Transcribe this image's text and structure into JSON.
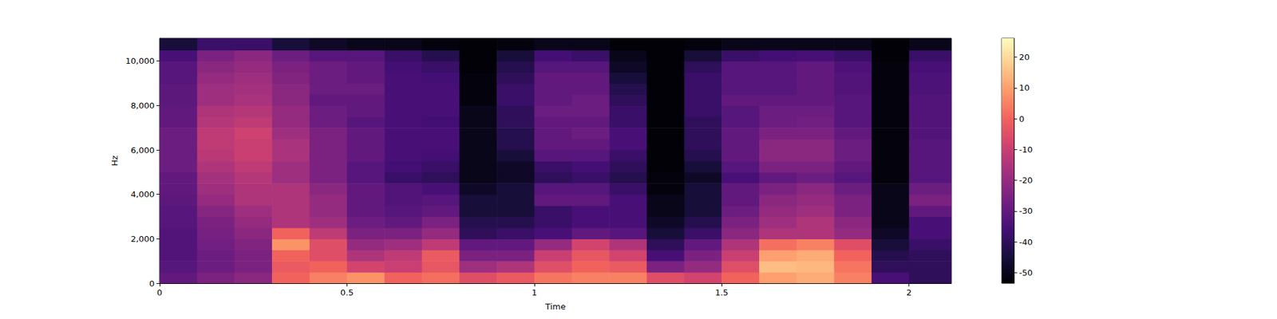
{
  "chart_data": {
    "type": "heatmap",
    "xlabel": "Time",
    "ylabel": "Hz",
    "xlim": [
      0,
      2.113
    ],
    "ylim": [
      0,
      11025
    ],
    "xticks": [
      0,
      0.5,
      1,
      1.5,
      2
    ],
    "yticks": [
      0,
      2000,
      4000,
      6000,
      8000,
      10000
    ],
    "grid": false,
    "x_edges": [
      0,
      0.1,
      0.2,
      0.3,
      0.4,
      0.5,
      0.6,
      0.7,
      0.8,
      0.9,
      1.0,
      1.1,
      1.2,
      1.3,
      1.4,
      1.5,
      1.6,
      1.7,
      1.8,
      1.9,
      2.0,
      2.113
    ],
    "y_edges": [
      0,
      500,
      1000,
      1500,
      2000,
      2500,
      3000,
      3500,
      4000,
      4500,
      5000,
      5500,
      6000,
      6500,
      7000,
      7500,
      8000,
      8500,
      9000,
      9500,
      10000,
      10500,
      11025
    ],
    "cells": [
      [
        -30,
        -25,
        -22,
        0,
        5,
        8,
        0,
        2,
        -5,
        -2,
        3,
        5,
        5,
        -5,
        -8,
        0,
        10,
        12,
        5,
        -35,
        -40
      ],
      [
        -32,
        -28,
        -25,
        -2,
        0,
        -8,
        -10,
        -3,
        -18,
        -15,
        -5,
        0,
        -2,
        -25,
        -20,
        -5,
        15,
        14,
        3,
        -40,
        -40
      ],
      [
        -33,
        -28,
        -25,
        0,
        -5,
        -15,
        -12,
        -2,
        -25,
        -25,
        -10,
        -3,
        -8,
        -35,
        -25,
        -10,
        10,
        12,
        0,
        -42,
        -40
      ],
      [
        -33,
        -27,
        -24,
        8,
        -5,
        -20,
        -18,
        -12,
        -30,
        -30,
        -20,
        -8,
        -15,
        -40,
        -30,
        -15,
        2,
        5,
        -5,
        -45,
        -38
      ],
      [
        -33,
        -26,
        -22,
        0,
        -12,
        -25,
        -25,
        -20,
        -40,
        -38,
        -35,
        -30,
        -32,
        -45,
        -38,
        -22,
        -15,
        -15,
        -20,
        -48,
        -35
      ],
      [
        -32,
        -25,
        -20,
        -15,
        -18,
        -28,
        -30,
        -25,
        -42,
        -42,
        -38,
        -35,
        -35,
        -48,
        -42,
        -25,
        -18,
        -15,
        -22,
        -50,
        -35
      ],
      [
        -32,
        -23,
        -18,
        -15,
        -20,
        -30,
        -32,
        -30,
        -45,
        -45,
        -38,
        -35,
        -35,
        -50,
        -45,
        -28,
        -20,
        -18,
        -25,
        -50,
        -30
      ],
      [
        -31,
        -20,
        -15,
        -15,
        -20,
        -30,
        -33,
        -32,
        -45,
        -45,
        -30,
        -30,
        -35,
        -50,
        -45,
        -30,
        -22,
        -20,
        -25,
        -50,
        -25
      ],
      [
        -30,
        -18,
        -15,
        -15,
        -22,
        -30,
        -33,
        -35,
        -48,
        -45,
        -32,
        -32,
        -38,
        -52,
        -45,
        -30,
        -25,
        -22,
        -28,
        -50,
        -28
      ],
      [
        -30,
        -17,
        -14,
        -18,
        -25,
        -32,
        -38,
        -40,
        -50,
        -48,
        -40,
        -38,
        -42,
        -52,
        -48,
        -35,
        -30,
        -28,
        -32,
        -52,
        -32
      ],
      [
        -28,
        -15,
        -12,
        -18,
        -25,
        -32,
        -36,
        -38,
        -50,
        -48,
        -38,
        -36,
        -40,
        -53,
        -45,
        -32,
        -25,
        -25,
        -30,
        -52,
        -32
      ],
      [
        -28,
        -13,
        -10,
        -16,
        -25,
        -30,
        -35,
        -36,
        -50,
        -45,
        -32,
        -32,
        -38,
        -53,
        -42,
        -30,
        -22,
        -22,
        -28,
        -52,
        -32
      ],
      [
        -28,
        -12,
        -10,
        -16,
        -25,
        -30,
        -35,
        -35,
        -50,
        -42,
        -30,
        -30,
        -35,
        -53,
        -40,
        -30,
        -22,
        -22,
        -28,
        -52,
        -32
      ],
      [
        -28,
        -12,
        -9,
        -18,
        -25,
        -30,
        -35,
        -35,
        -50,
        -42,
        -30,
        -28,
        -35,
        -53,
        -40,
        -30,
        -25,
        -25,
        -30,
        -52,
        -33
      ],
      [
        -30,
        -14,
        -12,
        -20,
        -28,
        -32,
        -35,
        -36,
        -50,
        -40,
        -30,
        -30,
        -38,
        -53,
        -40,
        -32,
        -28,
        -27,
        -32,
        -52,
        -33
      ],
      [
        -30,
        -15,
        -14,
        -20,
        -28,
        -30,
        -35,
        -35,
        -50,
        -40,
        -28,
        -28,
        -38,
        -53,
        -38,
        -32,
        -28,
        -28,
        -32,
        -52,
        -33
      ],
      [
        -31,
        -18,
        -16,
        -22,
        -30,
        -30,
        -35,
        -35,
        -52,
        -38,
        -30,
        -28,
        -40,
        -53,
        -38,
        -30,
        -30,
        -30,
        -32,
        -52,
        -33
      ],
      [
        -31,
        -18,
        -17,
        -22,
        -28,
        -28,
        -35,
        -35,
        -52,
        -38,
        -30,
        -30,
        -42,
        -53,
        -38,
        -32,
        -32,
        -30,
        -33,
        -52,
        -34
      ],
      [
        -32,
        -20,
        -18,
        -24,
        -28,
        -30,
        -35,
        -36,
        -52,
        -40,
        -30,
        -30,
        -45,
        -53,
        -38,
        -32,
        -32,
        -30,
        -33,
        -52,
        -34
      ],
      [
        -32,
        -22,
        -20,
        -25,
        -28,
        -30,
        -36,
        -38,
        -53,
        -42,
        -32,
        -32,
        -48,
        -53,
        -40,
        -32,
        -32,
        -30,
        -34,
        -52,
        -35
      ],
      [
        -35,
        -25,
        -22,
        -28,
        -32,
        -32,
        -38,
        -42,
        -53,
        -45,
        -36,
        -38,
        -50,
        -53,
        -45,
        -38,
        -36,
        -35,
        -38,
        -53,
        -38
      ],
      [
        -45,
        -38,
        -38,
        -45,
        -48,
        -50,
        -50,
        -52,
        -53,
        -52,
        -50,
        -50,
        -53,
        -53,
        -52,
        -50,
        -50,
        -50,
        -50,
        -53,
        -50
      ]
    ],
    "colorbar": {
      "range": [
        -53.4,
        26.1
      ],
      "ticks": [
        -50,
        -40,
        -30,
        -20,
        -10,
        0,
        10,
        20
      ]
    }
  }
}
